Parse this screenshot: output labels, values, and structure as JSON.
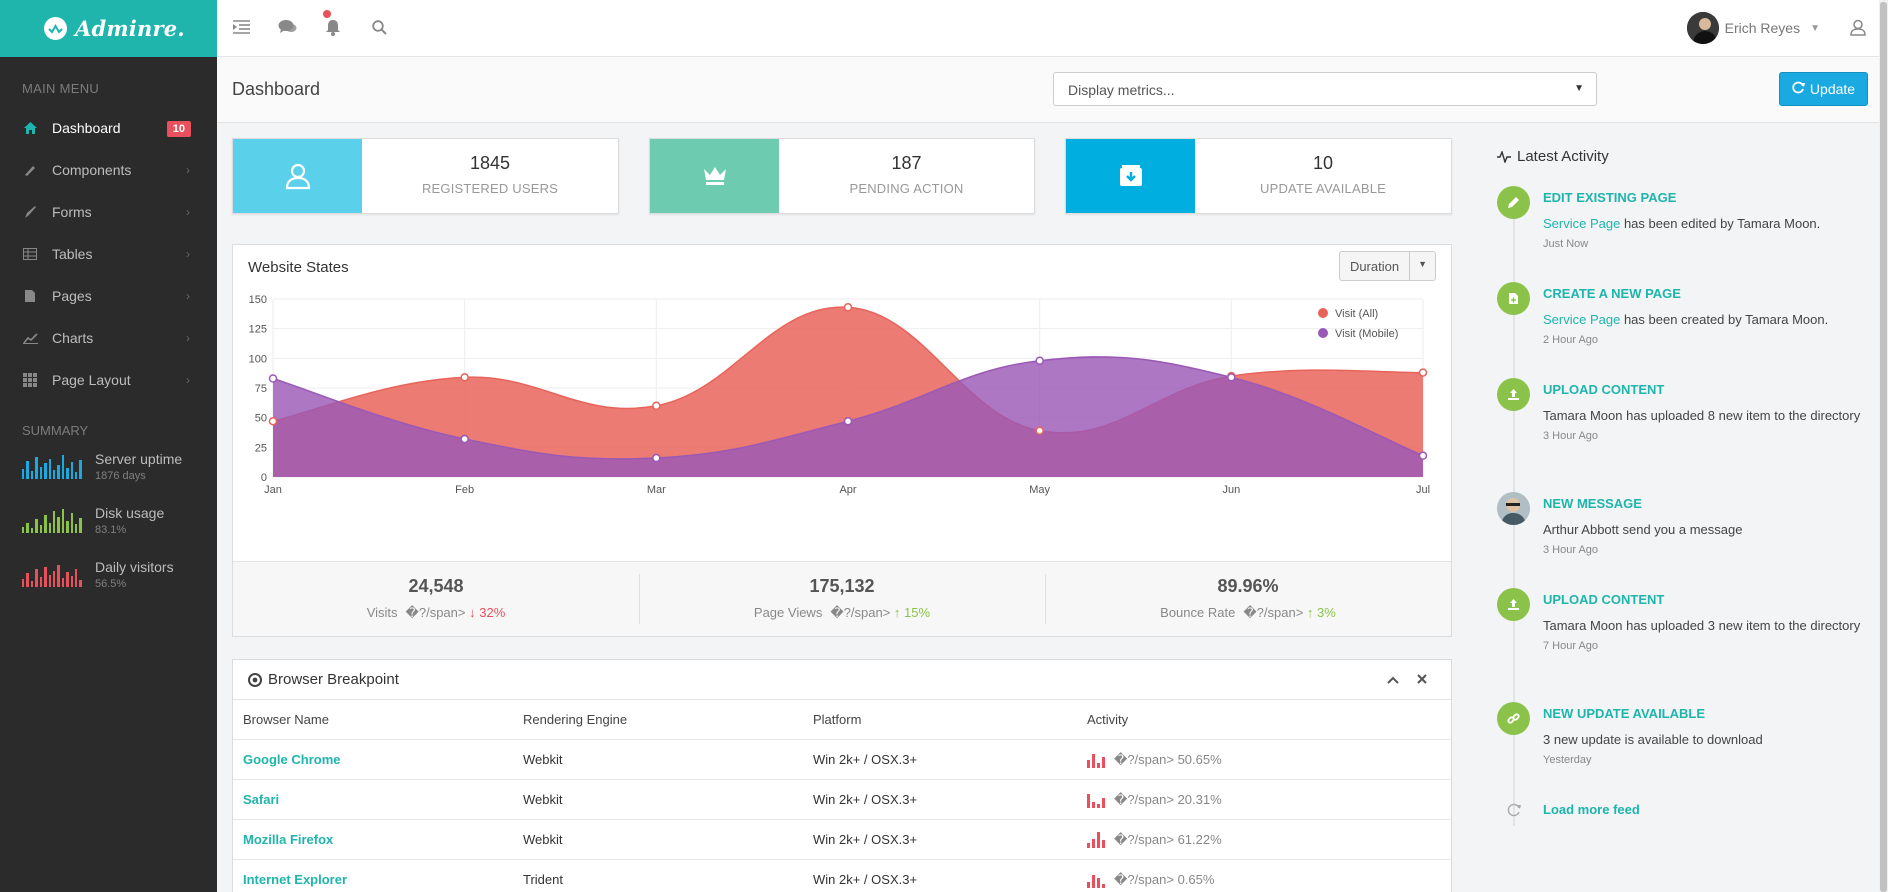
{
  "brand": {
    "name": "Adminre."
  },
  "sidebar": {
    "main_menu_label": "MAIN MENU",
    "items": [
      {
        "label": "Dashboard",
        "icon": "home-icon",
        "badge": "10"
      },
      {
        "label": "Components",
        "icon": "brush-icon"
      },
      {
        "label": "Forms",
        "icon": "pen-icon"
      },
      {
        "label": "Tables",
        "icon": "table-icon"
      },
      {
        "label": "Pages",
        "icon": "document-icon"
      },
      {
        "label": "Charts",
        "icon": "chart-icon"
      },
      {
        "label": "Page Layout",
        "icon": "grid-icon"
      }
    ],
    "summary_label": "SUMMARY",
    "summary": [
      {
        "title": "Server uptime",
        "sub": "1876 days",
        "color": "#1ba9e1"
      },
      {
        "title": "Disk usage",
        "sub": "83.1%",
        "color": "#8bc34a"
      },
      {
        "title": "Daily visitors",
        "sub": "56.5%",
        "color": "#e8505b"
      }
    ]
  },
  "topbar": {
    "user_name": "Erich Reyes"
  },
  "header": {
    "title": "Dashboard",
    "metrics_placeholder": "Display metrics...",
    "update_label": "Update"
  },
  "stats": [
    {
      "value": "1845",
      "label": "REGISTERED USERS",
      "color": "#5bd0eb"
    },
    {
      "value": "187",
      "label": "PENDING ACTION",
      "color": "#6dcbb0"
    },
    {
      "value": "10",
      "label": "UPDATE AVAILABLE",
      "color": "#00aee0"
    }
  ],
  "chart_panel": {
    "title": "Website States",
    "duration_label": "Duration"
  },
  "chart_data": {
    "type": "area",
    "categories": [
      "Jan",
      "Feb",
      "Mar",
      "Apr",
      "May",
      "Jun",
      "Jul"
    ],
    "ylim": [
      0,
      150
    ],
    "yticks": [
      0,
      25,
      50,
      75,
      100,
      125,
      150
    ],
    "legend_position": "top-right",
    "grid": true,
    "series": [
      {
        "name": "Visit (All)",
        "values": [
          47,
          84,
          60,
          143,
          39,
          85,
          88
        ],
        "color": "#e8645a"
      },
      {
        "name": "Visit (Mobile)",
        "values": [
          83,
          32,
          16,
          47,
          98,
          84,
          18
        ],
        "color": "#9b59b6"
      }
    ]
  },
  "chart_stats": [
    {
      "value": "24,548",
      "label": "Visits",
      "junk": "�?/span>",
      "delta": "32%",
      "dir": "down"
    },
    {
      "value": "175,132",
      "label": "Page Views",
      "junk": "�?/span>",
      "delta": "15%",
      "dir": "up"
    },
    {
      "value": "89.96%",
      "label": "Bounce Rate",
      "junk": "�?/span>",
      "delta": "3%",
      "dir": "up"
    }
  ],
  "browser_panel": {
    "title": "Browser Breakpoint",
    "columns": [
      "Browser Name",
      "Rendering Engine",
      "Platform",
      "Activity"
    ],
    "rows": [
      {
        "name": "Google Chrome",
        "engine": "Webkit",
        "platform": "Win 2k+ / OSX.3+",
        "activity": "�?/span> 50.65%"
      },
      {
        "name": "Safari",
        "engine": "Webkit",
        "platform": "Win 2k+ / OSX.3+",
        "activity": "�?/span> 20.31%"
      },
      {
        "name": "Mozilla Firefox",
        "engine": "Webkit",
        "platform": "Win 2k+ / OSX.3+",
        "activity": "�?/span> 61.22%"
      },
      {
        "name": "Internet Explorer",
        "engine": "Trident",
        "platform": "Win 2k+ / OSX.3+",
        "activity": "�?/span> 0.65%"
      }
    ]
  },
  "activity": {
    "title": "Latest Activity",
    "items": [
      {
        "heading": "EDIT EXISTING PAGE",
        "link": "Service Page",
        "desc": " has been edited by Tamara Moon.",
        "time": "Just Now",
        "icon": "pencil-icon"
      },
      {
        "heading": "CREATE A NEW PAGE",
        "link": "Service Page",
        "desc": " has been created by Tamara Moon.",
        "time": "2 Hour Ago",
        "icon": "file-icon"
      },
      {
        "heading": "UPLOAD CONTENT",
        "link": "",
        "desc": "Tamara Moon has uploaded 8 new item to the directory",
        "time": "3 Hour Ago",
        "icon": "upload-icon"
      },
      {
        "heading": "NEW MESSAGE",
        "link": "",
        "desc": "Arthur Abbott send you a message",
        "time": "3 Hour Ago",
        "icon": "avatar-icon"
      },
      {
        "heading": "UPLOAD CONTENT",
        "link": "",
        "desc": "Tamara Moon has uploaded 3 new item to the directory",
        "time": "7 Hour Ago",
        "icon": "upload-icon"
      },
      {
        "heading": "NEW UPDATE AVAILABLE",
        "link": "",
        "desc": "3 new update is available to download",
        "time": "Yesterday",
        "icon": "link-icon"
      }
    ],
    "load_more": "Load more feed"
  }
}
